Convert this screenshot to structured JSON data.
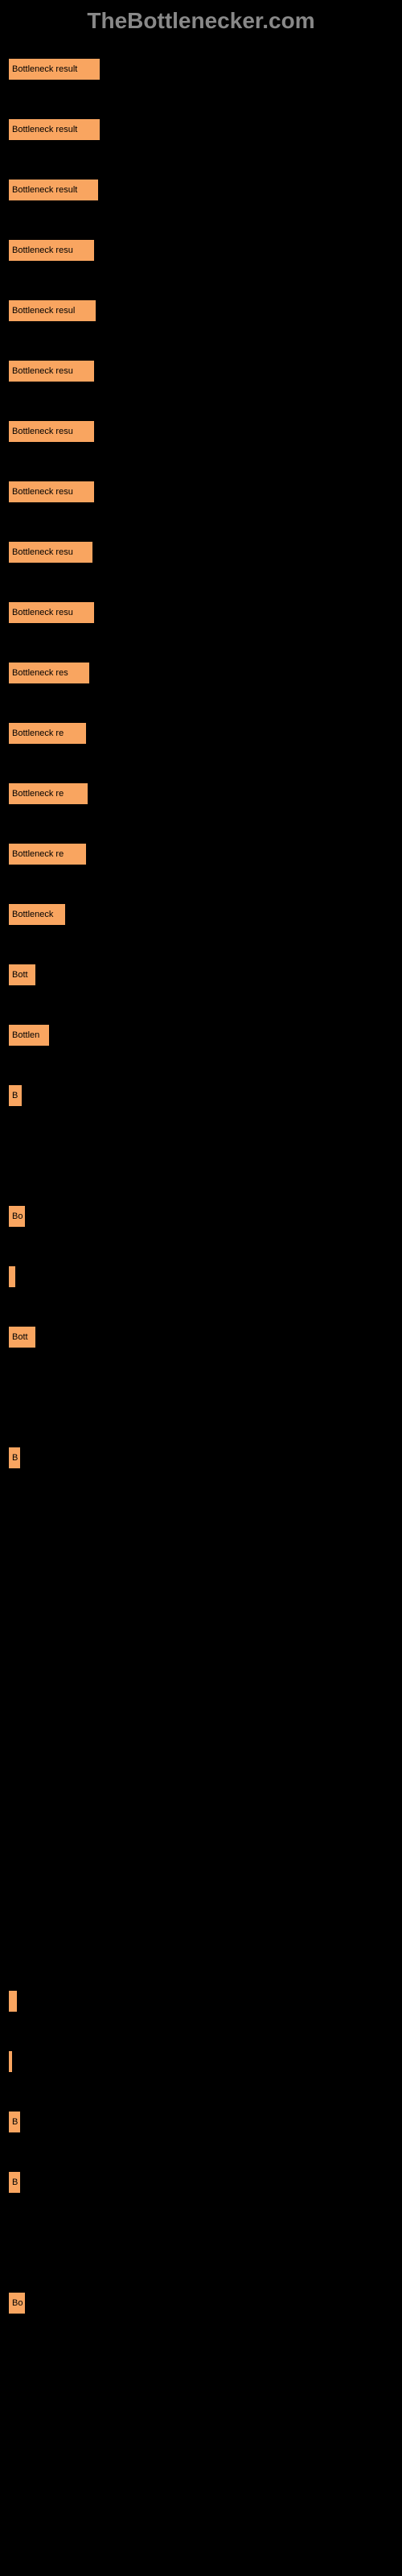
{
  "header": "TheBottlenecker.com",
  "chart": {
    "type": "bar",
    "bar_color": "#f9a560",
    "background_color": "#000000",
    "text_color": "#000000",
    "header_color": "#888888",
    "bars": [
      {
        "label": "Bottleneck result",
        "width": 115
      },
      {
        "label": "Bottleneck result",
        "width": 115
      },
      {
        "label": "Bottleneck result",
        "width": 113
      },
      {
        "label": "Bottleneck resu",
        "width": 108
      },
      {
        "label": "Bottleneck resul",
        "width": 110
      },
      {
        "label": "Bottleneck resu",
        "width": 108
      },
      {
        "label": "Bottleneck resu",
        "width": 108
      },
      {
        "label": "Bottleneck resu",
        "width": 108
      },
      {
        "label": "Bottleneck resu",
        "width": 106
      },
      {
        "label": "Bottleneck resu",
        "width": 108
      },
      {
        "label": "Bottleneck res",
        "width": 102
      },
      {
        "label": "Bottleneck re",
        "width": 98
      },
      {
        "label": "Bottleneck re",
        "width": 100
      },
      {
        "label": "Bottleneck re",
        "width": 98
      },
      {
        "label": "Bottleneck",
        "width": 72
      },
      {
        "label": "Bott",
        "width": 35
      },
      {
        "label": "Bottlen",
        "width": 52
      },
      {
        "label": "B",
        "width": 18
      },
      {
        "label": "",
        "width": 0
      },
      {
        "label": "Bo",
        "width": 22
      },
      {
        "label": "",
        "width": 10
      },
      {
        "label": "Bott",
        "width": 35
      },
      {
        "label": "",
        "width": 0
      },
      {
        "label": "B",
        "width": 16
      },
      {
        "label": "",
        "width": 0
      },
      {
        "label": "",
        "width": 0
      },
      {
        "label": "",
        "width": 0
      },
      {
        "label": "",
        "width": 0
      },
      {
        "label": "",
        "width": 0
      },
      {
        "label": "",
        "width": 0
      },
      {
        "label": "",
        "width": 0
      },
      {
        "label": "",
        "width": 0
      },
      {
        "label": "",
        "width": 12
      },
      {
        "label": "",
        "width": 6
      },
      {
        "label": "B",
        "width": 16
      },
      {
        "label": "B",
        "width": 16
      },
      {
        "label": "",
        "width": 0
      },
      {
        "label": "Bo",
        "width": 22
      }
    ]
  }
}
